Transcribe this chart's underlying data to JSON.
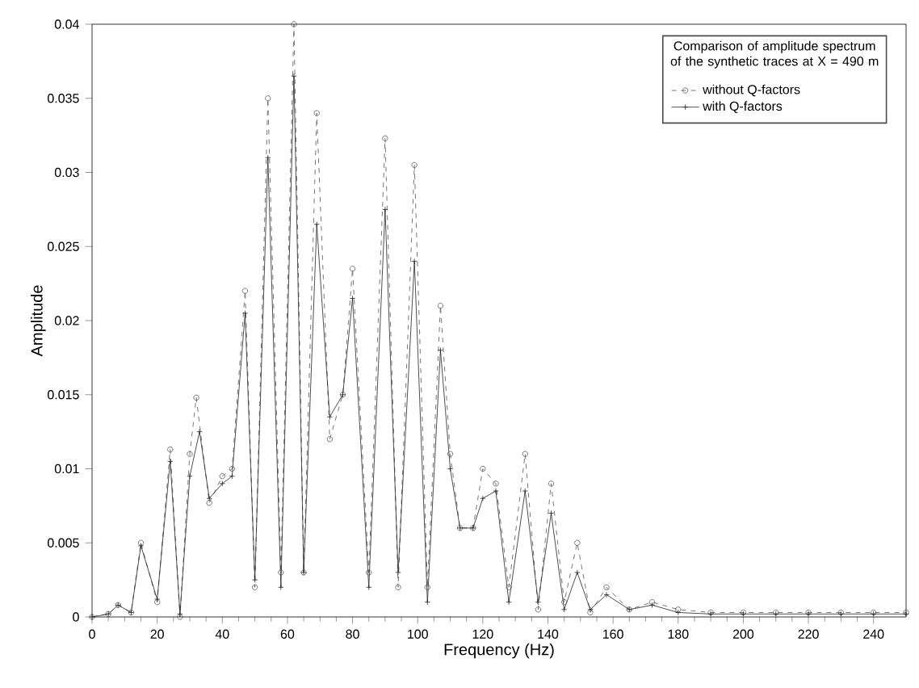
{
  "chart_data": {
    "type": "line",
    "xlabel": "Frequency (Hz)",
    "ylabel": "Amplitude",
    "legend_title": "Comparison of amplitude spectrum of the synthetic traces at X = 490 m",
    "legend": "top right",
    "grid": false,
    "xlim": [
      0,
      250
    ],
    "xticks": [
      0,
      20,
      40,
      60,
      80,
      100,
      120,
      140,
      160,
      180,
      200,
      220,
      240
    ],
    "ylim": [
      0,
      0.04
    ],
    "yticks": [
      0,
      0.005,
      0.01,
      0.015,
      0.02,
      0.025,
      0.03,
      0.035,
      0.04
    ],
    "series": [
      {
        "name": "without Q-factors",
        "color": "#555555",
        "line_style": "dashed",
        "marker": "circle",
        "x": [
          0,
          5,
          8,
          12,
          15,
          20,
          24,
          27,
          30,
          32,
          36,
          40,
          43,
          47,
          50,
          54,
          58,
          62,
          65,
          69,
          73,
          77,
          80,
          85,
          90,
          94,
          99,
          103,
          107,
          110,
          113,
          117,
          120,
          124,
          128,
          133,
          137,
          141,
          145,
          149,
          153,
          158,
          165,
          172,
          180,
          190,
          200,
          210,
          220,
          230,
          240,
          250
        ],
        "values": [
          0,
          0.0002,
          0.0008,
          0.0003,
          0.005,
          0.001,
          0.0113,
          0,
          0.011,
          0.0148,
          0.0077,
          0.0095,
          0.01,
          0.022,
          0.002,
          0.035,
          0.003,
          0.04,
          0.003,
          0.034,
          0.012,
          0.015,
          0.0235,
          0.003,
          0.0323,
          0.002,
          0.0305,
          0.002,
          0.021,
          0.011,
          0.006,
          0.006,
          0.01,
          0.009,
          0.002,
          0.011,
          0.0005,
          0.009,
          0.001,
          0.005,
          0.0003,
          0.002,
          0.0005,
          0.001,
          0.0005,
          0.0003,
          0.0003,
          0.0003,
          0.0003,
          0.0003,
          0.0003,
          0.0003
        ]
      },
      {
        "name": "with Q-factors",
        "color": "#222222",
        "line_style": "solid",
        "marker": "cross",
        "x": [
          0,
          5,
          8,
          12,
          15,
          20,
          24,
          27,
          30,
          33,
          36,
          40,
          43,
          47,
          50,
          54,
          58,
          62,
          65,
          69,
          73,
          77,
          80,
          85,
          90,
          94,
          99,
          103,
          107,
          110,
          113,
          117,
          120,
          124,
          128,
          133,
          137,
          141,
          145,
          149,
          153,
          158,
          165,
          172,
          180,
          190,
          200,
          210,
          220,
          230,
          240,
          250
        ],
        "values": [
          0,
          0.0002,
          0.0008,
          0.0003,
          0.0048,
          0.0012,
          0.0105,
          0.0002,
          0.0095,
          0.0125,
          0.008,
          0.009,
          0.0095,
          0.0205,
          0.0025,
          0.031,
          0.002,
          0.0365,
          0.003,
          0.0265,
          0.0135,
          0.015,
          0.0215,
          0.002,
          0.0275,
          0.003,
          0.024,
          0.001,
          0.018,
          0.01,
          0.006,
          0.006,
          0.008,
          0.0085,
          0.001,
          0.0085,
          0.001,
          0.007,
          0.0005,
          0.003,
          0.0005,
          0.0015,
          0.0005,
          0.0008,
          0.0003,
          0.0002,
          0.0002,
          0.0002,
          0.0002,
          0.0002,
          0.0002,
          0.0002
        ]
      }
    ]
  }
}
